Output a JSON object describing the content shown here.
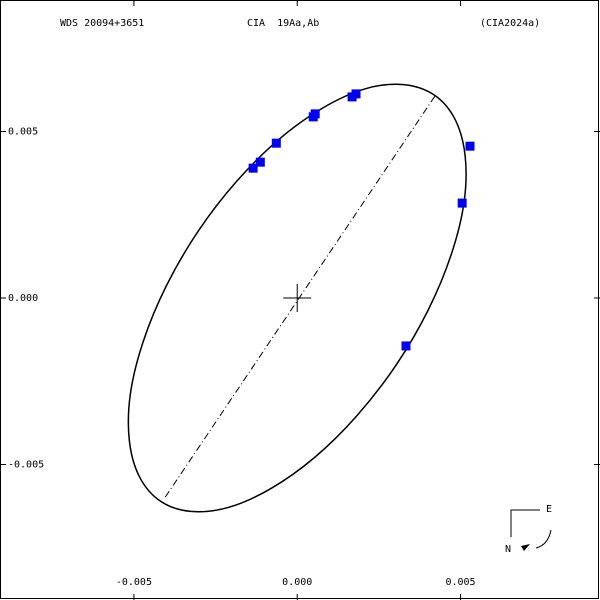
{
  "chart_data": {
    "type": "orbit",
    "title": "WDS 20094+3651",
    "subtitle": "CIA  19Aa,Ab",
    "reference": "(CIA2024a)",
    "xlim": [
      -0.0091,
      0.00927
    ],
    "ylim": [
      -0.00907,
      0.00895
    ],
    "xticks": [
      {
        "value": -0.005,
        "label": "-0.005"
      },
      {
        "value": 0,
        "label": "0.000"
      },
      {
        "value": 0.005,
        "label": "0.005"
      }
    ],
    "yticks": [
      {
        "value": 0.005,
        "label": "0.005"
      },
      {
        "value": 0,
        "label": "0.000"
      },
      {
        "value": -0.005,
        "label": "-0.005"
      }
    ],
    "orbit": {
      "color": "#000000",
      "x": [
        0.00419,
        0.00483,
        0.00514,
        0.00511,
        0.00472,
        0.00401,
        0.00303,
        0.00184,
        0.00053,
        -0.00082,
        -0.00211,
        -0.00326,
        -0.00419,
        -0.00483,
        -0.00514,
        -0.00511,
        -0.00472,
        -0.00401,
        -0.00303,
        -0.00184,
        -0.00053,
        0.00082,
        0.00211,
        0.00326
      ],
      "y": [
        0.0061,
        0.00537,
        0.00428,
        0.00289,
        0.00132,
        -0.00036,
        -0.00201,
        -0.00352,
        -0.00479,
        -0.00573,
        -0.00629,
        -0.00641,
        -0.0061,
        -0.00537,
        -0.00428,
        -0.00289,
        -0.00132,
        0.00036,
        0.00201,
        0.00352,
        0.00479,
        0.00573,
        0.00629,
        0.00641
      ]
    },
    "line_of_apsides": {
      "x": [
        -0.00404,
        0.00422
      ],
      "y": [
        -0.00598,
        0.00607
      ]
    },
    "primary": {
      "x": 0,
      "y": 0
    },
    "observations": {
      "color": "#0000ee",
      "x": [
        -0.00135,
        -0.00113,
        -0.00064,
        0.00049,
        0.00055,
        0.00168,
        0.0018,
        0.00529,
        0.00505,
        0.00333
      ],
      "y": [
        0.0039,
        0.00408,
        0.00465,
        0.00544,
        0.00553,
        0.00604,
        0.00613,
        0.00456,
        0.00285,
        -0.00144
      ]
    },
    "compass": {
      "east": "E",
      "north": "N"
    }
  }
}
